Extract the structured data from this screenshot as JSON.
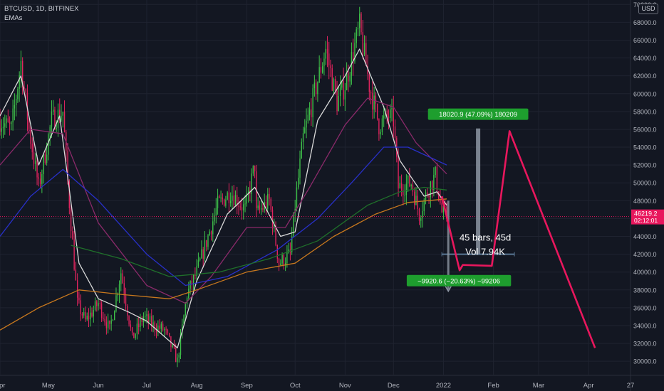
{
  "header": {
    "symbol_line": "BTCUSD, 1D, BITFINEX",
    "indicator": "EMAs",
    "currency": "USD"
  },
  "price_label": {
    "price": "46219.2",
    "countdown": "02:12:01",
    "value": 46219.2
  },
  "colors": {
    "background": "#131722",
    "up": "#26a69a",
    "up_candle": "#3ec24a",
    "down_candle": "#e0245e",
    "ema_white": "#d9d9d9",
    "ema_purple": "#8a2a6a",
    "ema_blue": "#2830c8",
    "ema_green": "#1f6f2a",
    "ema_orange": "#c8781e",
    "projection": "#e8175d",
    "measure_fill": "#1e9e2e",
    "measure_bar": "#8d96a3",
    "price_tag": "#e8175d"
  },
  "chart_data": {
    "type": "candlestick",
    "title": "BTCUSD, 1D, BITFINEX",
    "y_axis": {
      "range": [
        28500,
        70500
      ],
      "ticks": [
        "30000.0",
        "32000.0",
        "34000.0",
        "36000.0",
        "38000.0",
        "40000.0",
        "42000.0",
        "44000.0",
        "46000.0",
        "48000.0",
        "50000.0",
        "52000.0",
        "54000.0",
        "56000.0",
        "58000.0",
        "60000.0",
        "62000.0",
        "64000.0",
        "66000.0",
        "68000.0",
        "70000.0"
      ]
    },
    "x_axis": {
      "ticks": [
        "Apr",
        "May",
        "Jun",
        "Jul",
        "Aug",
        "Sep",
        "Oct",
        "Nov",
        "Dec",
        "2022",
        "Feb",
        "Mar",
        "Apr",
        "27"
      ],
      "tick_dates": [
        "2021-04-01",
        "2021-05-01",
        "2021-06-01",
        "2021-07-01",
        "2021-08-01",
        "2021-09-01",
        "2021-10-01",
        "2021-11-01",
        "2021-12-01",
        "2022-01-01",
        "2022-02-01",
        "2022-03-01",
        "2022-04-01",
        "2022-04-27"
      ],
      "range": [
        "2021-04-01",
        "2022-04-27"
      ]
    },
    "price_path": [
      [
        "2021-04-01",
        57000
      ],
      [
        "2021-04-08",
        56000
      ],
      [
        "2021-04-14",
        63500
      ],
      [
        "2021-04-19",
        56000
      ],
      [
        "2021-04-25",
        49500
      ],
      [
        "2021-05-03",
        57000
      ],
      [
        "2021-05-10",
        58000
      ],
      [
        "2021-05-13",
        50000
      ],
      [
        "2021-05-19",
        36500
      ],
      [
        "2021-05-24",
        34500
      ],
      [
        "2021-06-01",
        36500
      ],
      [
        "2021-06-08",
        33500
      ],
      [
        "2021-06-15",
        40000
      ],
      [
        "2021-06-22",
        32500
      ],
      [
        "2021-06-29",
        35000
      ],
      [
        "2021-07-05",
        34000
      ],
      [
        "2021-07-12",
        33500
      ],
      [
        "2021-07-20",
        30000
      ],
      [
        "2021-07-26",
        37500
      ],
      [
        "2021-08-01",
        40000
      ],
      [
        "2021-08-08",
        44000
      ],
      [
        "2021-08-14",
        47500
      ],
      [
        "2021-08-22",
        49000
      ],
      [
        "2021-08-31",
        47000
      ],
      [
        "2021-09-06",
        52000
      ],
      [
        "2021-09-07",
        46500
      ],
      [
        "2021-09-15",
        48000
      ],
      [
        "2021-09-21",
        41000
      ],
      [
        "2021-09-28",
        42000
      ],
      [
        "2021-10-01",
        47500
      ],
      [
        "2021-10-06",
        55000
      ],
      [
        "2021-10-15",
        61500
      ],
      [
        "2021-10-20",
        65000
      ],
      [
        "2021-10-27",
        59000
      ],
      [
        "2021-11-01",
        61000
      ],
      [
        "2021-11-10",
        67500
      ],
      [
        "2021-11-16",
        61000
      ],
      [
        "2021-11-22",
        56500
      ],
      [
        "2021-11-28",
        57500
      ],
      [
        "2021-12-01",
        57000
      ],
      [
        "2021-12-04",
        49500
      ],
      [
        "2021-12-12",
        50000
      ],
      [
        "2021-12-17",
        46500
      ],
      [
        "2021-12-23",
        49500
      ],
      [
        "2021-12-27",
        50800
      ],
      [
        "2021-12-31",
        46700
      ],
      [
        "2022-01-03",
        46219
      ]
    ],
    "series": [
      {
        "path": [
          [
            "2021-04-01",
            57500
          ],
          [
            "2021-04-14",
            62000
          ],
          [
            "2021-04-25",
            52000
          ],
          [
            "2021-05-08",
            57500
          ],
          [
            "2021-05-20",
            41000
          ],
          [
            "2021-06-01",
            37000
          ],
          [
            "2021-06-20",
            35500
          ],
          [
            "2021-07-01",
            34500
          ],
          [
            "2021-07-20",
            31500
          ],
          [
            "2021-08-01",
            39000
          ],
          [
            "2021-08-20",
            46500
          ],
          [
            "2021-09-06",
            49500
          ],
          [
            "2021-09-22",
            44000
          ],
          [
            "2021-10-01",
            44500
          ],
          [
            "2021-10-15",
            57000
          ],
          [
            "2021-11-01",
            62000
          ],
          [
            "2021-11-10",
            65000
          ],
          [
            "2021-11-25",
            58500
          ],
          [
            "2021-12-05",
            52500
          ],
          [
            "2021-12-20",
            48500
          ],
          [
            "2021-12-28",
            49000
          ],
          [
            "2022-01-03",
            47500
          ]
        ]
      },
      {
        "path": [
          [
            "2021-04-01",
            52000
          ],
          [
            "2021-04-20",
            56000
          ],
          [
            "2021-05-10",
            55500
          ],
          [
            "2021-06-01",
            45500
          ],
          [
            "2021-07-01",
            38500
          ],
          [
            "2021-07-25",
            36500
          ],
          [
            "2021-08-10",
            39500
          ],
          [
            "2021-09-01",
            45000
          ],
          [
            "2021-09-25",
            45000
          ],
          [
            "2021-10-10",
            49500
          ],
          [
            "2021-11-01",
            56500
          ],
          [
            "2021-11-15",
            59500
          ],
          [
            "2021-12-01",
            58500
          ],
          [
            "2021-12-15",
            54500
          ],
          [
            "2022-01-03",
            51000
          ]
        ]
      },
      {
        "path": [
          [
            "2021-04-01",
            44000
          ],
          [
            "2021-04-20",
            48500
          ],
          [
            "2021-05-10",
            51500
          ],
          [
            "2021-06-01",
            48000
          ],
          [
            "2021-07-01",
            42000
          ],
          [
            "2021-07-25",
            38500
          ],
          [
            "2021-08-20",
            39500
          ],
          [
            "2021-09-20",
            42500
          ],
          [
            "2021-10-15",
            46000
          ],
          [
            "2021-11-05",
            50000
          ],
          [
            "2021-11-25",
            54000
          ],
          [
            "2021-12-10",
            54000
          ],
          [
            "2022-01-03",
            52000
          ]
        ]
      },
      {
        "path": [
          [
            "2021-05-15",
            43000
          ],
          [
            "2021-06-15",
            41500
          ],
          [
            "2021-07-15",
            39500
          ],
          [
            "2021-08-15",
            40000
          ],
          [
            "2021-09-15",
            41500
          ],
          [
            "2021-10-15",
            43500
          ],
          [
            "2021-11-15",
            47500
          ],
          [
            "2021-12-05",
            49000
          ],
          [
            "2021-12-20",
            49500
          ],
          [
            "2022-01-03",
            49200
          ]
        ]
      },
      {
        "path": [
          [
            "2021-04-01",
            33500
          ],
          [
            "2021-04-25",
            36000
          ],
          [
            "2021-05-20",
            38000
          ],
          [
            "2021-06-15",
            37500
          ],
          [
            "2021-07-15",
            37000
          ],
          [
            "2021-08-01",
            38000
          ],
          [
            "2021-09-01",
            40000
          ],
          [
            "2021-10-01",
            41000
          ],
          [
            "2021-10-25",
            44000
          ],
          [
            "2021-11-20",
            46500
          ],
          [
            "2021-12-10",
            47800
          ],
          [
            "2022-01-03",
            48200
          ]
        ]
      }
    ],
    "projection_path": [
      [
        "2021-12-31",
        48500
      ],
      [
        "2022-01-03",
        46219
      ],
      [
        "2022-01-11",
        40200
      ],
      [
        "2022-01-13",
        40800
      ],
      [
        "2022-01-31",
        40700
      ],
      [
        "2022-02-11",
        55800
      ],
      [
        "2022-04-05",
        31500
      ]
    ],
    "measure_tool": {
      "start": "2021-12-31",
      "end": "2022-02-14",
      "upper_text": "18020.9 (47.09%) 180209",
      "lower_text": "−9920.6 (−20.63%) −99206",
      "bars_text": "45 bars, 45d",
      "vol_text": "Vol 7.94K",
      "base_price": 42000,
      "up_target": 56100,
      "down_target": 38000,
      "small_bar_top": 48000
    },
    "grid": true
  }
}
